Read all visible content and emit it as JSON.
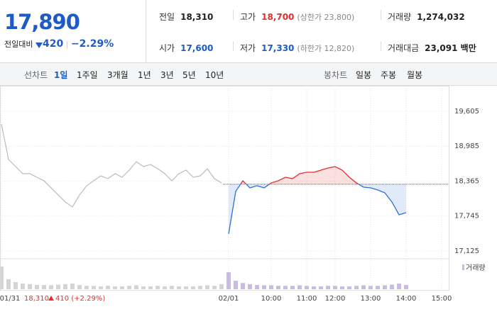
{
  "header": {
    "price": "17,890",
    "change_label": "전일대비",
    "change": "420",
    "change_pct": "−2.29%",
    "stats": [
      [
        {
          "label": "전일",
          "value": "18,310"
        },
        {
          "label": "고가",
          "value": "18,700",
          "extra": "(상한가 23,800)"
        },
        {
          "label": "거래량",
          "value": "1,274,032"
        }
      ],
      [
        {
          "label": "시가",
          "value": "17,600"
        },
        {
          "label": "저가",
          "value": "17,330",
          "extra": "(하한가 12,820)"
        },
        {
          "label": "거래대금",
          "value": "23,091 백만"
        }
      ]
    ]
  },
  "tabs": {
    "line_label": "선차트",
    "line": [
      "1일",
      "1주일",
      "3개월",
      "1년",
      "3년",
      "5년",
      "10년"
    ],
    "candle_label": "봉차트",
    "candle": [
      "일봉",
      "주봉",
      "월봉"
    ]
  },
  "footer": {
    "date": "01/31",
    "close": "18,310",
    "change": "410 (+2.29%)"
  },
  "chart_data": {
    "type": "line",
    "volume_label": "거래량",
    "categories": [
      "01/31",
      null,
      null,
      null,
      null,
      null,
      null,
      null,
      null,
      null,
      null,
      null,
      null,
      null,
      null,
      null,
      null,
      null,
      null,
      null,
      null,
      null,
      null,
      null,
      null,
      null,
      null,
      null,
      null,
      null,
      null,
      null,
      "02/01",
      null,
      null,
      null,
      null,
      null,
      "10:00",
      null,
      null,
      null,
      null,
      "11:00",
      null,
      null,
      null,
      "12:00",
      null,
      null,
      null,
      null,
      "13:00",
      null,
      null,
      null,
      null,
      "14:00",
      null,
      null,
      null,
      null,
      "15:00",
      null
    ],
    "series": [
      {
        "color": "#bbbbbb",
        "values": [
          19378,
          18749,
          18623,
          18497,
          18497,
          18434,
          18371,
          18245,
          18120,
          17994,
          17905,
          18120,
          18283,
          18371,
          18459,
          18409,
          18497,
          18434,
          18560,
          18711,
          18623,
          18660,
          18585,
          18497,
          18371,
          18497,
          18560,
          18434,
          18459,
          18585,
          18409,
          18333,
          null,
          null,
          null,
          null,
          null,
          null,
          null,
          null,
          null,
          null,
          null,
          null,
          null,
          null,
          null,
          null,
          null,
          null,
          null,
          null,
          null,
          null,
          null,
          null,
          null,
          null,
          null,
          null,
          null,
          null,
          null,
          null
        ]
      },
      {
        "color": "#2f6fd6",
        "up_color": "#e52d2d",
        "values": [
          null,
          null,
          null,
          null,
          null,
          null,
          null,
          null,
          null,
          null,
          null,
          null,
          null,
          null,
          null,
          null,
          null,
          null,
          null,
          null,
          null,
          null,
          null,
          null,
          null,
          null,
          null,
          null,
          null,
          null,
          null,
          null,
          17427,
          18182,
          18371,
          18245,
          18283,
          18245,
          18333,
          18371,
          18434,
          18409,
          18497,
          18522,
          18522,
          18560,
          18598,
          18623,
          18560,
          18434,
          18333,
          18258,
          18245,
          18208,
          18157,
          17994,
          17767,
          17805,
          null,
          null,
          null,
          null,
          null,
          null
        ]
      }
    ],
    "prev_close": 18310,
    "volume": [
      80,
      35,
      25,
      20,
      18,
      15,
      15,
      14,
      16,
      18,
      20,
      15,
      12,
      12,
      10,
      12,
      10,
      10,
      12,
      14,
      10,
      10,
      12,
      10,
      12,
      10,
      10,
      10,
      12,
      14,
      12,
      18,
      60,
      30,
      22,
      18,
      15,
      14,
      14,
      12,
      12,
      12,
      14,
      12,
      10,
      10,
      12,
      12,
      10,
      10,
      12,
      14,
      12,
      12,
      14,
      16,
      20,
      15,
      0,
      0,
      0,
      0,
      0,
      0
    ],
    "volume_color": "#c9bce0",
    "volume_ylim": [
      0,
      100
    ],
    "ylim": [
      17024,
      19945
    ],
    "yticks": [
      {
        "value": 17125,
        "label": "17,125"
      },
      {
        "value": 17745,
        "label": "17,745"
      },
      {
        "value": 18365,
        "label": "18,365"
      },
      {
        "value": 18985,
        "label": "18,985"
      },
      {
        "value": 19605,
        "label": "19,605"
      }
    ],
    "grid": true
  }
}
